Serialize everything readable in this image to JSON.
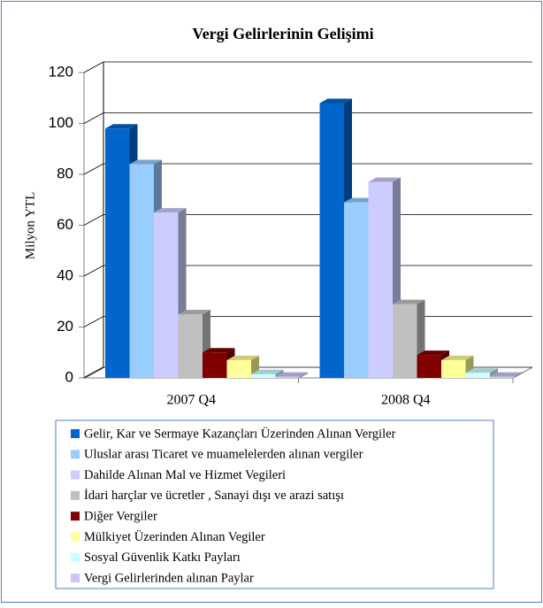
{
  "chart_data": {
    "type": "bar3d",
    "title": "Vergi Gelirlerinin Gelişimi",
    "y_label": "Milyon YTL",
    "categories": [
      "2007 Q4",
      "2008 Q4"
    ],
    "series": [
      {
        "name": "Gelir, Kar ve Sermaye Kazançları Üzerinden Alınan Vergiler",
        "color": "#0066CC",
        "values": [
          98,
          108
        ]
      },
      {
        "name": "Uluslar arası Ticaret ve muamelelerden alınan vergiler",
        "color": "#99CCFF",
        "values": [
          84,
          69
        ]
      },
      {
        "name": "Dahilde Alınan Mal ve Hizmet Vegileri",
        "color": "#CCCCFF",
        "values": [
          65,
          77
        ]
      },
      {
        "name": "İdari harçlar ve ücretler , Sanayi dışı ve arazi satışı",
        "color": "#C0C0C0",
        "values": [
          25,
          29
        ]
      },
      {
        "name": "Diğer Vergiler",
        "color": "#800000",
        "values": [
          10,
          9
        ]
      },
      {
        "name": "Mülkiyet Üzerinden Alınan Vegiler",
        "color": "#FFFF99",
        "values": [
          7,
          7
        ]
      },
      {
        "name": "Sosyal Güvenlik Katkı Payları",
        "color": "#CCFFFF",
        "values": [
          1.5,
          2
        ]
      },
      {
        "name": "Vergi Gelirlerinden alınan Paylar",
        "color": "#C8C8F8",
        "values": [
          0.5,
          0.5
        ]
      }
    ],
    "ylim": [
      0,
      120
    ],
    "yticks": [
      0,
      20,
      40,
      60,
      80,
      100,
      120
    ],
    "grid": true
  }
}
